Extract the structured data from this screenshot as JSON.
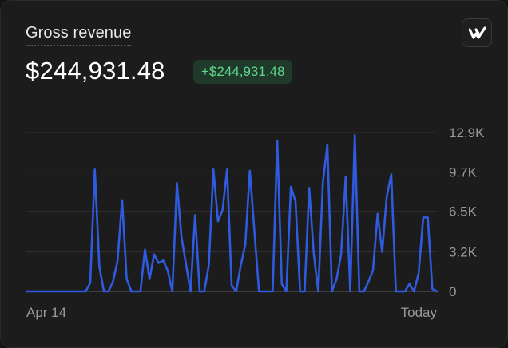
{
  "card": {
    "title": "Gross revenue",
    "amount": "$244,931.48",
    "change_badge": "+$244,931.48"
  },
  "colors": {
    "line": "#2f5be0",
    "badge_text": "#5fd58b",
    "badge_bg": "#1f3a2a"
  },
  "icons": {
    "app_logo": "brand-logo-icon"
  },
  "chart_data": {
    "type": "line",
    "x_labels": [
      "Apr 14",
      "Today"
    ],
    "y_ticks": [
      {
        "value": 12900,
        "label": "12.9K"
      },
      {
        "value": 9700,
        "label": "9.7K"
      },
      {
        "value": 6500,
        "label": "6.5K"
      },
      {
        "value": 3200,
        "label": "3.2K"
      },
      {
        "value": 0,
        "label": "0"
      }
    ],
    "ylim": [
      0,
      12900
    ],
    "grid": true,
    "series": [
      {
        "values": [
          0,
          0,
          0,
          0,
          0,
          0,
          0,
          0,
          0,
          0,
          0,
          0,
          0,
          0,
          700,
          9900,
          2000,
          0,
          0,
          800,
          2500,
          7400,
          1000,
          0,
          0,
          0,
          3400,
          1000,
          3000,
          2300,
          2500,
          1700,
          0,
          8800,
          4400,
          2200,
          0,
          6200,
          0,
          0,
          2100,
          9900,
          5700,
          6600,
          9900,
          500,
          0,
          2100,
          3800,
          9800,
          4800,
          0,
          0,
          0,
          0,
          12200,
          600,
          0,
          8500,
          7300,
          0,
          0,
          8400,
          3100,
          0,
          8800,
          11900,
          0,
          1000,
          3000,
          9300,
          0,
          12700,
          0,
          0,
          800,
          1700,
          6300,
          3200,
          7700,
          9500,
          0,
          0,
          0,
          600,
          0,
          1500,
          6000,
          6000,
          200,
          0
        ]
      }
    ]
  }
}
